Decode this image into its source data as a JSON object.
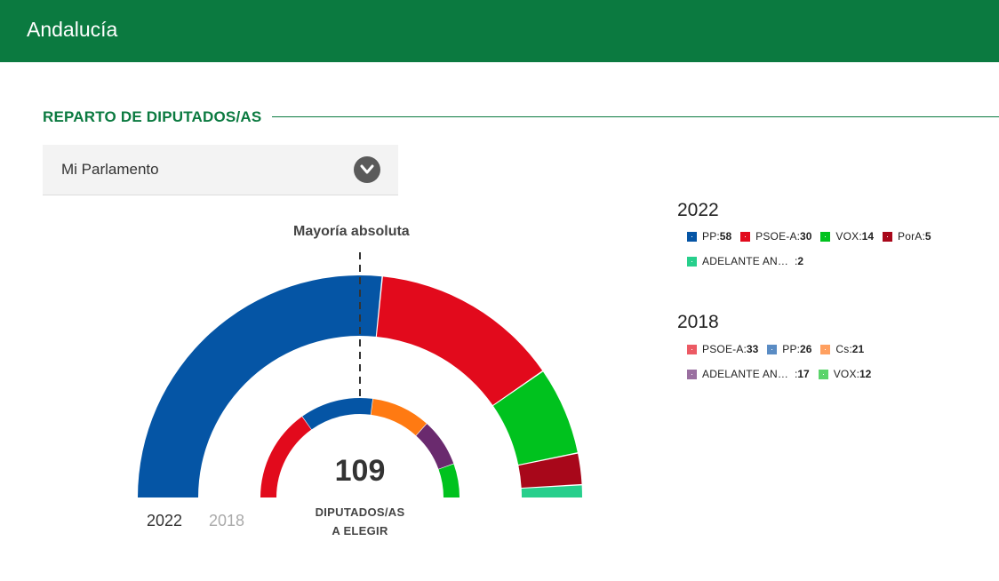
{
  "header": {
    "title": "Andalucía"
  },
  "section": {
    "title": "REPARTO DE DIPUTADOS/AS"
  },
  "selector": {
    "value": "Mi Parlamento",
    "icon": "chevron-down-icon"
  },
  "chart_data": {
    "type": "hemicycle",
    "majority_label": "Mayoría absoluta",
    "total_seats": "109",
    "total_caption_line1": "DIPUTADOS/AS",
    "total_caption_line2": "A ELEGIR",
    "year_tabs": [
      {
        "label": "2022",
        "active": true
      },
      {
        "label": "2018",
        "active": false
      }
    ],
    "series": [
      {
        "name": "2022",
        "parties": [
          {
            "name": "PP",
            "seats": 58,
            "color": "#0555a5"
          },
          {
            "name": "PSOE-A",
            "seats": 30,
            "color": "#e20a1c"
          },
          {
            "name": "VOX",
            "seats": 14,
            "color": "#00c21e"
          },
          {
            "name": "PorA",
            "seats": 5,
            "color": "#a8071a"
          },
          {
            "name": "ADELANTE AN…",
            "seats": 2,
            "color": "#27cf8c"
          }
        ]
      },
      {
        "name": "2018",
        "parties": [
          {
            "name": "PSOE-A",
            "seats": 33,
            "color": "#e20a1c",
            "legend_color": "#ec5a64"
          },
          {
            "name": "PP",
            "seats": 26,
            "color": "#0555a5",
            "legend_color": "#5a8cc4"
          },
          {
            "name": "Cs",
            "seats": 21,
            "color": "#ff7a12",
            "legend_color": "#ffa060"
          },
          {
            "name": "ADELANTE AN…",
            "seats": 17,
            "color": "#6a2a6e",
            "legend_color": "#9a6fa0"
          },
          {
            "name": "VOX",
            "seats": 12,
            "color": "#00c21e",
            "legend_color": "#5ad46a"
          }
        ]
      }
    ]
  }
}
